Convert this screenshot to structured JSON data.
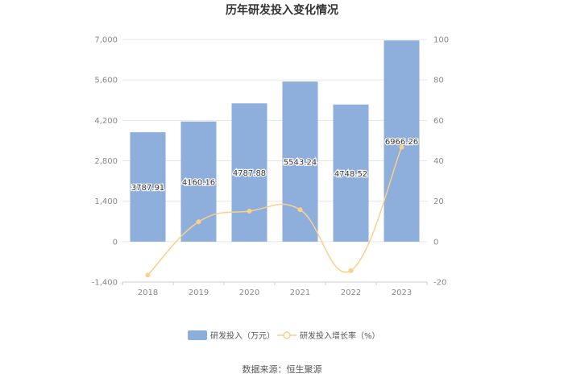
{
  "chart_data": {
    "type": "bar",
    "title": "历年研发投入变化情况",
    "categories": [
      "2018",
      "2019",
      "2020",
      "2021",
      "2022",
      "2023"
    ],
    "series": [
      {
        "name": "研发投入（万元）",
        "type": "bar",
        "axis": "left",
        "color": "#8eaedc",
        "values": [
          3787.91,
          4160.16,
          4787.88,
          5543.24,
          4748.52,
          6966.26
        ],
        "labels": [
          "3787.91",
          "4160.16",
          "4787.88",
          "5543.24",
          "4748.52",
          "6966.26"
        ]
      },
      {
        "name": "研发投入增长率（%）",
        "type": "line",
        "axis": "right",
        "color": "#fbd08a",
        "values": [
          -16.5,
          9.8,
          15.1,
          15.8,
          -14.3,
          46.7
        ]
      }
    ],
    "y_left": {
      "min": -1400,
      "max": 7000,
      "ticks": [
        -1400,
        0,
        1400,
        2800,
        4200,
        5600,
        7000
      ],
      "tick_labels": [
        "-1,400",
        "0",
        "1,400",
        "2,800",
        "4,200",
        "5,600",
        "7,000"
      ]
    },
    "y_right": {
      "min": -20,
      "max": 100,
      "ticks": [
        -20,
        0,
        20,
        40,
        60,
        80,
        100
      ],
      "tick_labels": [
        "-20",
        "0",
        "20",
        "40",
        "60",
        "80",
        "100"
      ]
    },
    "grid": true,
    "legend_position": "bottom",
    "source": "数据来源：恒生聚源"
  }
}
